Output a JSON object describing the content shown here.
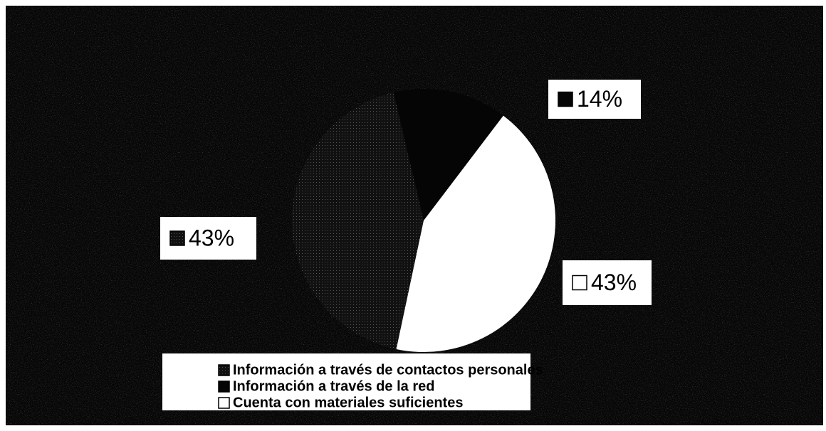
{
  "chart_data": {
    "type": "pie",
    "categories": [
      "Información a través de contactos personales",
      "Información a través de la red",
      "Cuenta con materiales suficientes"
    ],
    "values": [
      43,
      14,
      43
    ],
    "value_labels": [
      "43%",
      "14%",
      "43%"
    ],
    "colors": [
      "#1a1a1a",
      "#050505",
      "#ffffff"
    ],
    "legend": "bottom"
  }
}
